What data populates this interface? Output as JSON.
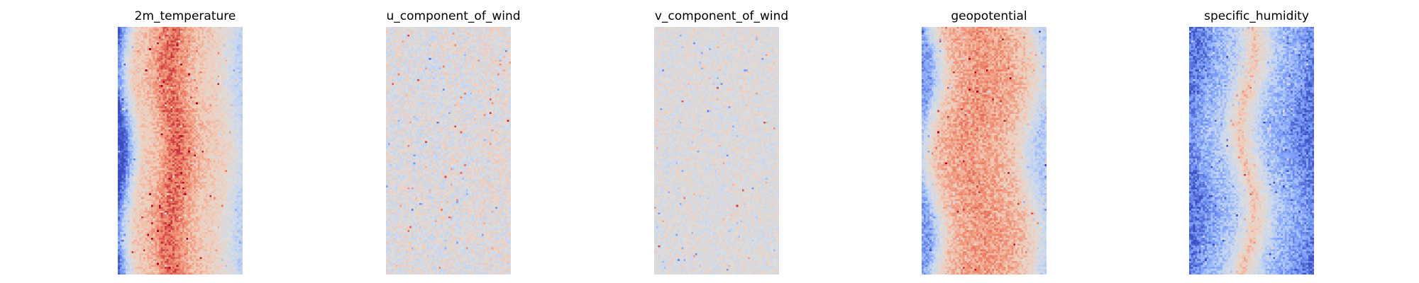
{
  "chart_data": [
    {
      "type": "heatmap",
      "title": "2m_temperature",
      "colormap": "coolwarm",
      "axis": "off",
      "pattern": "warm central vertical band, cooler edges",
      "profile": [
        -1.7,
        -0.6,
        0.45,
        0.55,
        0.8,
        1.15,
        1.25,
        1.0,
        0.75,
        0.55,
        0.45,
        0.3,
        -0.1,
        -0.5
      ],
      "noise": 0.18
    },
    {
      "type": "heatmap",
      "title": "u_component_of_wind",
      "colormap": "coolwarm",
      "axis": "off",
      "pattern": "mostly neutral with scattered blue and red streaks",
      "profile": [
        0.0,
        -0.05,
        0.05,
        -0.05,
        0.0,
        -0.1,
        0.0,
        0.05,
        -0.05,
        0.0,
        0.05,
        0.1,
        0.05,
        0.0
      ],
      "noise": 0.35
    },
    {
      "type": "heatmap",
      "title": "v_component_of_wind",
      "colormap": "coolwarm",
      "axis": "off",
      "pattern": "mostly neutral with faint scattered anomalies",
      "profile": [
        0.0,
        0.0,
        -0.05,
        0.0,
        0.05,
        0.0,
        -0.05,
        0.0,
        0.0,
        0.05,
        0.0,
        0.0,
        -0.05,
        0.0
      ],
      "noise": 0.25
    },
    {
      "type": "heatmap",
      "title": "geopotential",
      "colormap": "coolwarm",
      "axis": "off",
      "pattern": "warm body with cool left edge and wavy central band",
      "profile": [
        -1.1,
        -0.2,
        0.5,
        0.75,
        0.85,
        0.95,
        0.95,
        0.9,
        0.85,
        0.75,
        0.6,
        0.3,
        -0.3,
        -0.6
      ],
      "noise": 0.2
    },
    {
      "type": "heatmap",
      "title": "specific_humidity",
      "colormap": "coolwarm",
      "axis": "off",
      "pattern": "cool field with a narrow warm central column",
      "profile": [
        -1.4,
        -1.2,
        -0.95,
        -0.8,
        -0.6,
        -0.1,
        0.6,
        0.1,
        -0.5,
        -0.8,
        -0.95,
        -1.05,
        -1.25,
        -1.4
      ],
      "noise": 0.22
    }
  ]
}
